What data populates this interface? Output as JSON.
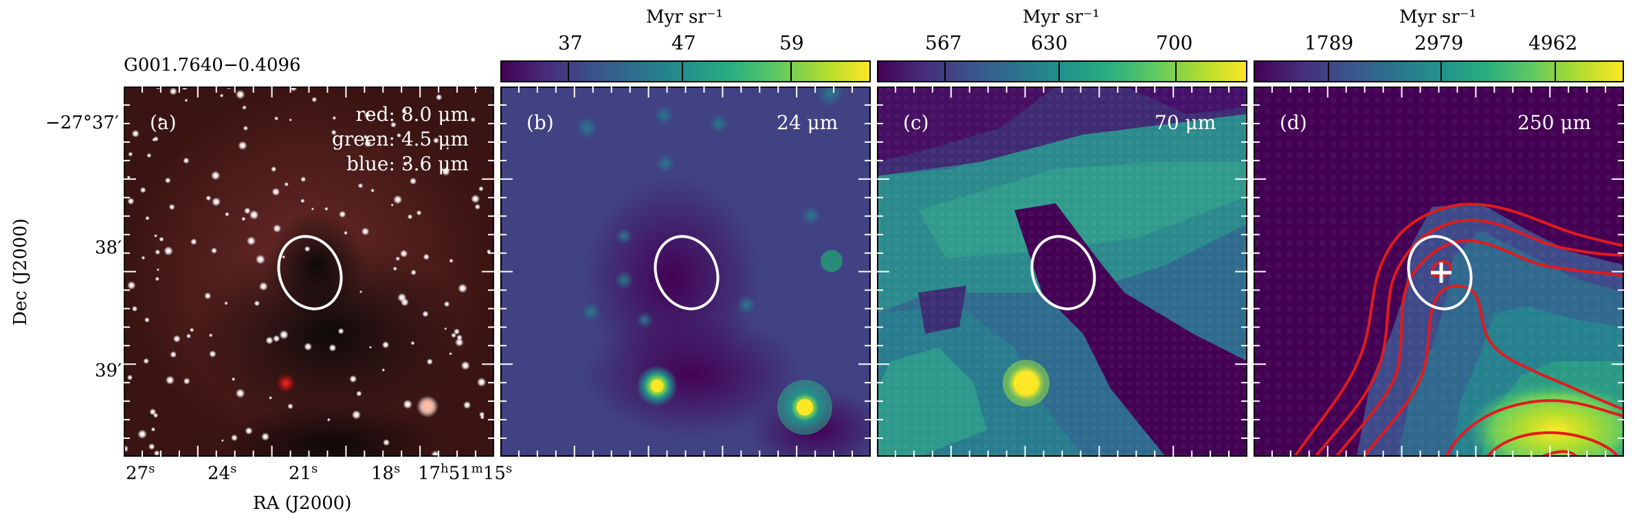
{
  "figure": {
    "source_name": "G001.7640−0.4096",
    "y_axis_label": "Dec (J2000)",
    "x_axis_label": "RA (J2000)",
    "dec_ticks": [
      "−27°37′",
      "38′",
      "39′"
    ],
    "ra_ticks": [
      {
        "main": "27",
        "sup": "s"
      },
      {
        "main": "24",
        "sup": "s"
      },
      {
        "main": "21",
        "sup": "s"
      },
      {
        "main": "18",
        "sup": "s"
      },
      {
        "main": "17",
        "sup": "h",
        "main2": "51",
        "sup2": "m",
        "main3": "15",
        "sup3": "s"
      }
    ]
  },
  "panels": [
    {
      "id": "a",
      "label": "(a)",
      "legend": [
        "red: 8.0 μm",
        "green: 4.5 μm",
        "blue: 3.6 μm"
      ]
    },
    {
      "id": "b",
      "label": "(b)",
      "band": "24 μm",
      "colorbar": {
        "unit": "Myr sr⁻¹",
        "ticks": [
          "37",
          "47",
          "59"
        ]
      }
    },
    {
      "id": "c",
      "label": "(c)",
      "band": "70 μm",
      "colorbar": {
        "unit": "Myr sr⁻¹",
        "ticks": [
          "567",
          "630",
          "700"
        ]
      }
    },
    {
      "id": "d",
      "label": "(d)",
      "band": "250 μm",
      "colorbar": {
        "unit": "Myr sr⁻¹",
        "ticks": [
          "1789",
          "2979",
          "4962"
        ]
      }
    }
  ],
  "colors": {
    "colormap_low": "#440154",
    "colormap_mid": "#21918c",
    "colormap_high": "#fde725",
    "contour": "#e31a1c",
    "ellipse": "#ffffff"
  }
}
